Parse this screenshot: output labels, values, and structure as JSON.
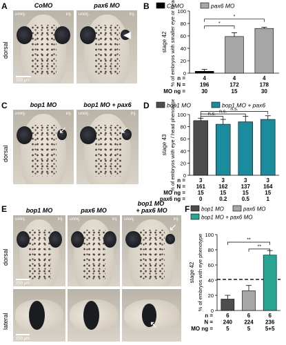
{
  "panels": {
    "A": {
      "label": "A",
      "titles": [
        "CoMO",
        "pax6 MO"
      ],
      "uninj": "uninj.",
      "inj": "inj.",
      "side": "dorsal",
      "scale": "250 μm"
    },
    "B": {
      "label": "B"
    },
    "C": {
      "label": "C",
      "titles": [
        "bop1 MO",
        "bop1 MO + pax6"
      ],
      "uninj": "uninj.",
      "inj": "inj.",
      "side": "dorsal"
    },
    "D": {
      "label": "D"
    },
    "E": {
      "label": "E",
      "titles": [
        "bop1 MO",
        "pax6 MO",
        "+ pax6 MO"
      ],
      "title_top": "bop1 MO",
      "uninj": "uninj.",
      "inj": "inj.",
      "side_top": "dorsal",
      "side_bottom": "lateral",
      "scale_top": "250 μm",
      "scale_bottom": "250 μm"
    },
    "F": {
      "label": "F"
    }
  },
  "chart_data": [
    {
      "panel": "B",
      "type": "bar",
      "legend": [
        "CoMO",
        "pax6 MO"
      ],
      "colors": [
        "#000000",
        "#a6a6a6"
      ],
      "categories": [
        "CoMO 30",
        "pax6 15",
        "pax6 30"
      ],
      "values": [
        3,
        59,
        72
      ],
      "errors": [
        3,
        6,
        2
      ],
      "series_index": [
        0,
        1,
        1
      ],
      "ylabel": "% of embryos with smaller eye or head",
      "side_label": "stage 42",
      "ylim": [
        0,
        100
      ],
      "yticks": [
        "0",
        "20",
        "40",
        "60",
        "80",
        "100"
      ],
      "rows": [
        {
          "label": "n =",
          "values": [
            "4",
            "4",
            "4"
          ]
        },
        {
          "label": "N =",
          "values": [
            "196",
            "172",
            "178"
          ]
        },
        {
          "label": "MO ng =",
          "values": [
            "30",
            "15",
            "30"
          ]
        }
      ],
      "significance": [
        "*",
        "*"
      ]
    },
    {
      "panel": "D",
      "type": "bar",
      "legend": [
        "bop1 MO",
        "bop1 MO + pax6"
      ],
      "colors": [
        "#4d4d4d",
        "#1a8c9e"
      ],
      "categories": [
        "0",
        "0.2",
        "0.5",
        "1"
      ],
      "values": [
        90,
        84,
        88,
        92
      ],
      "errors": [
        4,
        8,
        9,
        6
      ],
      "series_index": [
        0,
        1,
        1,
        1
      ],
      "ylabel": "% of embryos with eye / head phenotype",
      "side_label": "stage 43",
      "ylim": [
        0,
        100
      ],
      "yticks": [
        "0",
        "20",
        "40",
        "60",
        "80",
        "100"
      ],
      "rows": [
        {
          "label": "n =",
          "values": [
            "3",
            "3",
            "3",
            "3"
          ]
        },
        {
          "label": "N =",
          "values": [
            "161",
            "162",
            "137",
            "164"
          ]
        },
        {
          "label": "MO ng =",
          "values": [
            "15",
            "15",
            "15",
            "15"
          ]
        },
        {
          "label": "pax6 ng =",
          "values": [
            "0",
            "0.2",
            "0.5",
            "1"
          ]
        }
      ],
      "significance": [
        "n.s.",
        "n.s.",
        "n.s."
      ]
    },
    {
      "panel": "F",
      "type": "bar",
      "legend": [
        "bop1 MO",
        "pax6 MO",
        "bop1 MO + pax6 MO"
      ],
      "colors": [
        "#4d4d4d",
        "#a6a6a6",
        "#2aa594"
      ],
      "categories": [
        "bop1",
        "pax6",
        "bop1+pax6"
      ],
      "values": [
        15,
        26,
        73
      ],
      "errors": [
        5,
        7,
        6
      ],
      "series_index": [
        0,
        1,
        2
      ],
      "ylabel": "% of embryos with eye phenotype",
      "side_label": "stage 42",
      "ylim": [
        0,
        100
      ],
      "yticks": [
        "0",
        "20",
        "40",
        "60",
        "80",
        "100"
      ],
      "dashed_line": 41,
      "rows": [
        {
          "label": "n =",
          "values": [
            "6",
            "6",
            "6"
          ]
        },
        {
          "label": "N =",
          "values": [
            "240",
            "224",
            "236"
          ]
        },
        {
          "label": "MO ng =",
          "values": [
            "5",
            "5",
            "5+5"
          ]
        }
      ],
      "significance": [
        "**",
        "**"
      ]
    }
  ]
}
